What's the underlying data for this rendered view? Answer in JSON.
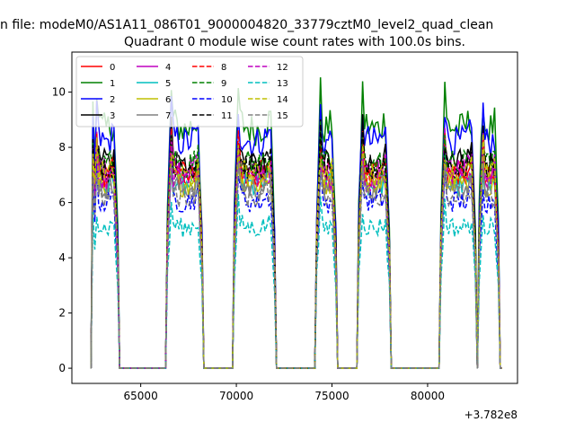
{
  "figure": {
    "suptitle": "n file: modeM0/AS1A11_086T01_9000004820_33779cztM0_level2_quad_clean"
  },
  "chart_data": {
    "type": "line",
    "title": "Quadrant 0 module wise count rates with 100.0s bins.",
    "xlabel": "",
    "ylabel": "",
    "x_offset_text": "+3.782e8",
    "xlim": [
      61400,
      84700
    ],
    "ylim": [
      -0.55,
      11.45
    ],
    "xticks": [
      65000,
      70000,
      75000,
      80000
    ],
    "xtick_labels": [
      "65000",
      "70000",
      "75000",
      "80000"
    ],
    "yticks": [
      0,
      2,
      4,
      6,
      8,
      10
    ],
    "ytick_labels": [
      "0",
      "2",
      "4",
      "6",
      "8",
      "10"
    ],
    "grid": false,
    "legend_position": "top-left",
    "segments": [
      [
        62500,
        63800
      ],
      [
        66400,
        68200
      ],
      [
        69900,
        72000
      ],
      [
        74200,
        75200
      ],
      [
        76400,
        78000
      ],
      [
        80700,
        82500
      ],
      [
        82700,
        83700
      ]
    ],
    "series": [
      {
        "name": "0",
        "color": "#ff0000",
        "dash": "solid",
        "level": 7.3
      },
      {
        "name": "1",
        "color": "#008000",
        "dash": "solid",
        "level": 9.2
      },
      {
        "name": "2",
        "color": "#0000ff",
        "dash": "solid",
        "level": 8.7
      },
      {
        "name": "3",
        "color": "#000000",
        "dash": "solid",
        "level": 7.9
      },
      {
        "name": "4",
        "color": "#bf00bf",
        "dash": "solid",
        "level": 7.6
      },
      {
        "name": "5",
        "color": "#00bfbf",
        "dash": "solid",
        "level": 7.0
      },
      {
        "name": "6",
        "color": "#bfbf00",
        "dash": "solid",
        "level": 7.1
      },
      {
        "name": "7",
        "color": "#808080",
        "dash": "solid",
        "level": 6.9
      },
      {
        "name": "8",
        "color": "#ff0000",
        "dash": "dashed",
        "level": 7.5
      },
      {
        "name": "9",
        "color": "#008000",
        "dash": "dashed",
        "level": 7.8
      },
      {
        "name": "10",
        "color": "#0000ff",
        "dash": "dashed",
        "level": 6.4
      },
      {
        "name": "11",
        "color": "#000000",
        "dash": "dashed",
        "level": 7.7
      },
      {
        "name": "12",
        "color": "#bf00bf",
        "dash": "dashed",
        "level": 7.2
      },
      {
        "name": "13",
        "color": "#00bfbf",
        "dash": "dashed",
        "level": 5.4
      },
      {
        "name": "14",
        "color": "#bfbf00",
        "dash": "dashed",
        "level": 7.4
      },
      {
        "name": "15",
        "color": "#808080",
        "dash": "dashed",
        "level": 6.6
      }
    ]
  }
}
